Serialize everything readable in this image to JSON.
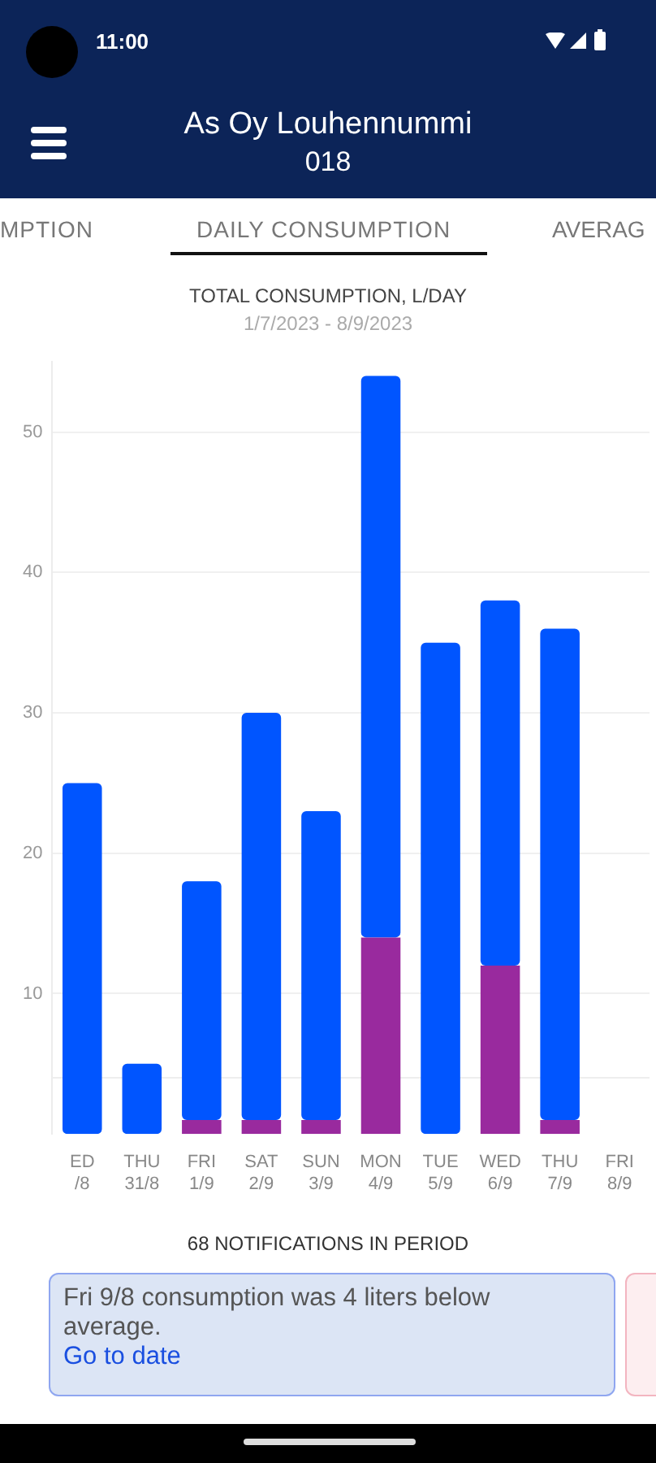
{
  "chart_data": {
    "type": "bar",
    "title": "TOTAL CONSUMPTION, L/DAY",
    "subtitle": "1/7/2023 - 8/9/2023",
    "categories": [
      "ED\n/8",
      "THU\n31/8",
      "FRI\n1/9",
      "SAT\n2/9",
      "SUN\n3/9",
      "MON\n4/9",
      "TUE\n5/9",
      "WED\n6/9",
      "THU\n7/9",
      "FRI\n8/9"
    ],
    "stacked": true,
    "series": [
      {
        "color": "#992a9e",
        "values": [
          0,
          0,
          1,
          1,
          1,
          14,
          0,
          12,
          1,
          null
        ]
      },
      {
        "color": "#0055ff",
        "values": [
          25,
          5,
          17,
          29,
          22,
          40,
          35,
          26,
          35,
          null
        ]
      }
    ],
    "ylim": [
      0,
      55
    ],
    "yticks": [
      10,
      20,
      30,
      40,
      50
    ],
    "grid": "y",
    "legend": false,
    "ref_lines": [
      {
        "axis": "y",
        "value": 4,
        "color": "#eeeeee"
      }
    ],
    "annotations": [
      "11:00",
      "As Oy Louhennummi",
      "018",
      "MPTION",
      "DAILY CONSUMPTION",
      "AVERAG",
      "68 NOTIFICATIONS IN PERIOD",
      "Fri 9/8 consumption was 4 liters below average.",
      "Go to date"
    ]
  }
}
